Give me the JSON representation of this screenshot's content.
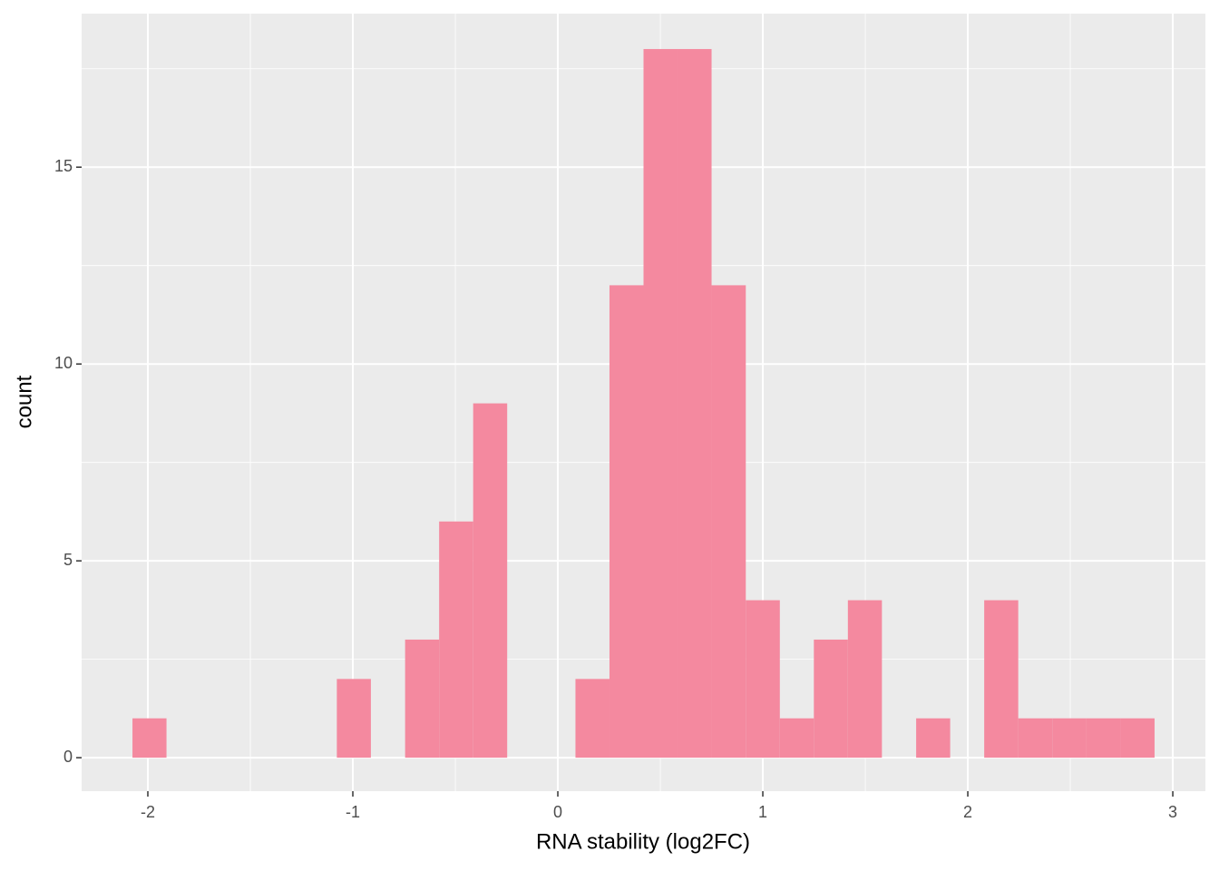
{
  "chart_data": {
    "type": "histogram",
    "x_label": "RNA stability (log2FC)",
    "y_label": "count",
    "bins": [
      -2.075,
      -1.909,
      -1.743,
      -1.576,
      -1.41,
      -1.244,
      -1.078,
      -0.912,
      -0.745,
      -0.579,
      -0.413,
      -0.247,
      -0.081,
      0.086,
      0.252,
      0.418,
      0.584,
      0.75,
      0.917,
      1.083,
      1.249,
      1.415,
      1.581,
      1.748,
      1.914,
      2.08,
      2.246,
      2.412,
      2.579,
      2.745,
      2.911
    ],
    "values": [
      1,
      0,
      0,
      0,
      0,
      0,
      2,
      0,
      3,
      6,
      9,
      0,
      0,
      2,
      12,
      18,
      18,
      12,
      4,
      1,
      3,
      4,
      0,
      1,
      0,
      4,
      1,
      1,
      1,
      1
    ],
    "color": "#f4899f",
    "xlim": [
      -2.323,
      3.159
    ],
    "xticks": [
      -2,
      -1,
      0,
      1,
      2,
      3
    ],
    "ylim": [
      -0.85,
      18.9
    ],
    "yticks": [
      0,
      5,
      10,
      15
    ],
    "grid": true
  }
}
